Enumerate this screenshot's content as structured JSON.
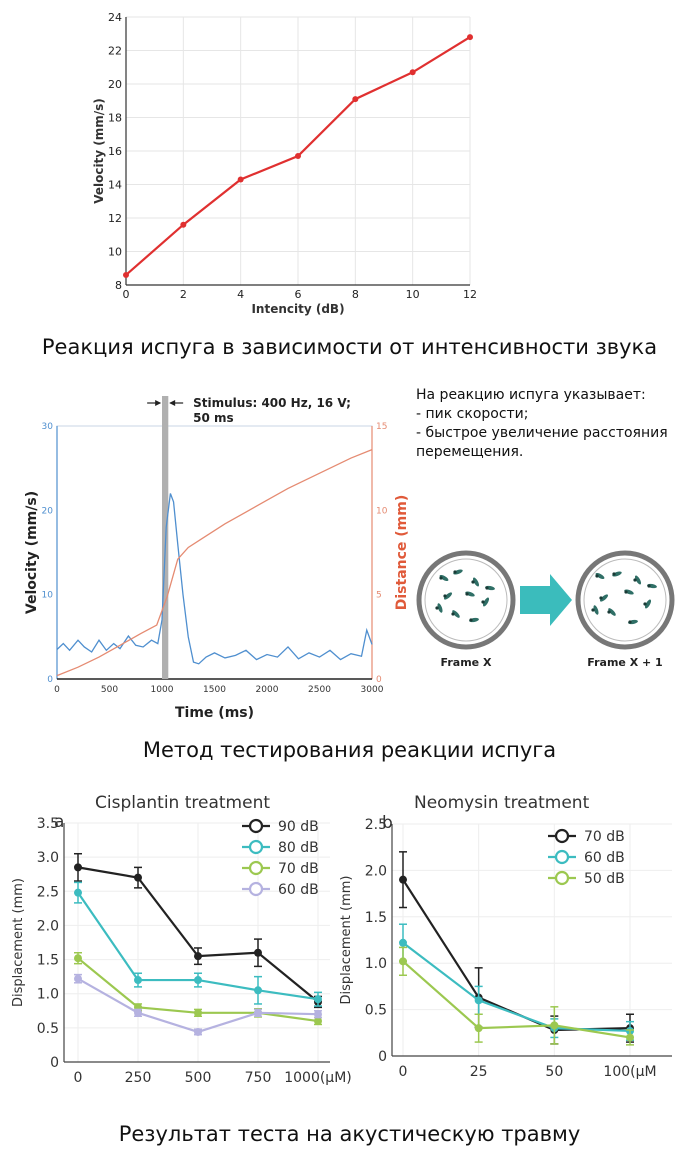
{
  "captions": {
    "chart1": "Реакция испуга в зависимости от интенсивности звука",
    "chart2": "Метод тестирования реакции испуга",
    "chart3": "Результат теста на акустическую травму"
  },
  "note": {
    "title": "На реакцию испуга указывает:",
    "items": [
      "- пик скорости;",
      "- быстрое увеличение расстояния",
      "перемещения."
    ]
  },
  "frames": {
    "left_label": "Frame X",
    "right_label": "Frame X + 1",
    "arrow_color": "#3bbcbc"
  },
  "chart_data": [
    {
      "type": "line",
      "id": "velocity-vs-intensity",
      "xlabel": "Intencity (dB)",
      "ylabel": "Velocity (mm/s)",
      "xlim": [
        0,
        12
      ],
      "ylim": [
        8,
        24
      ],
      "xticks": [
        0,
        2,
        4,
        6,
        8,
        10,
        12
      ],
      "yticks": [
        8,
        10,
        12,
        14,
        16,
        18,
        20,
        22,
        24
      ],
      "color": "#e03030",
      "x": [
        0,
        2,
        4,
        6,
        8,
        10,
        12
      ],
      "y": [
        8.6,
        11.6,
        14.3,
        15.7,
        19.1,
        20.7,
        22.8
      ]
    },
    {
      "type": "line",
      "id": "startle-test",
      "annotation": "Stimulus: 400 Hz, 16 V;",
      "annotation2": "50 ms",
      "xlabel": "Time (ms)",
      "ylabel_left": "Velocity (mm/s)",
      "ylabel_right": "Distance (mm)",
      "xlim": [
        0,
        3000
      ],
      "xticks": [
        0,
        500,
        1000,
        1500,
        2000,
        2500,
        3000
      ],
      "ylim_left": [
        0,
        30
      ],
      "yticks_left": [
        0,
        10,
        20,
        30
      ],
      "ylim_right": [
        0,
        15
      ],
      "yticks_right": [
        0,
        5,
        10,
        15
      ],
      "stimulus_ms": [
        1000,
        1060
      ],
      "series": [
        {
          "name": "Velocity",
          "axis": "left",
          "color": "#4f8fcf",
          "x": [
            0,
            60,
            120,
            200,
            260,
            330,
            400,
            470,
            540,
            600,
            680,
            750,
            820,
            900,
            960,
            1000,
            1040,
            1080,
            1110,
            1150,
            1200,
            1250,
            1300,
            1350,
            1420,
            1500,
            1600,
            1700,
            1800,
            1900,
            2000,
            2100,
            2200,
            2300,
            2400,
            2500,
            2600,
            2700,
            2800,
            2900,
            2950,
            3000
          ],
          "y": [
            3.5,
            4.2,
            3.4,
            4.6,
            3.8,
            3.2,
            4.6,
            3.4,
            4.2,
            3.6,
            5.1,
            4.0,
            3.8,
            4.6,
            4.2,
            7,
            18,
            22,
            21,
            16,
            10,
            5,
            2,
            1.8,
            2.6,
            3.1,
            2.5,
            2.8,
            3.4,
            2.3,
            2.9,
            2.6,
            3.8,
            2.4,
            3.1,
            2.6,
            3.4,
            2.3,
            3.0,
            2.7,
            5.8,
            4.1
          ]
        },
        {
          "name": "Distance",
          "axis": "right",
          "color": "#e58b72",
          "x": [
            0,
            200,
            400,
            600,
            800,
            950,
            1050,
            1150,
            1250,
            1400,
            1600,
            1800,
            2000,
            2200,
            2400,
            2600,
            2800,
            3000
          ],
          "y": [
            0.2,
            0.7,
            1.3,
            2.0,
            2.7,
            3.2,
            4.9,
            7.1,
            7.8,
            8.4,
            9.2,
            9.9,
            10.6,
            11.3,
            11.9,
            12.5,
            13.1,
            13.6
          ]
        }
      ]
    },
    {
      "type": "line",
      "id": "cisplatin",
      "panel": "a",
      "title": "Cisplantin treatment",
      "xlabel": "",
      "ylabel": "Displacement (mm)",
      "categories": [
        "0",
        "250",
        "500",
        "750",
        "1000(μM)"
      ],
      "ylim": [
        0,
        3.5
      ],
      "yticks": [
        "0",
        "0.5",
        "1.0",
        "1.5",
        "2.0",
        "2.5",
        "3.0",
        "3.5"
      ],
      "legend_position": "top-right",
      "series": [
        {
          "name": "90 dB",
          "color": "#222222",
          "values": [
            2.85,
            2.7,
            1.55,
            1.6,
            0.88
          ],
          "err": [
            0.2,
            0.15,
            0.12,
            0.2,
            0.08
          ]
        },
        {
          "name": "80 dB",
          "color": "#3cbcc0",
          "values": [
            2.48,
            1.2,
            1.2,
            1.05,
            0.92
          ],
          "err": [
            0.15,
            0.1,
            0.1,
            0.2,
            0.1
          ]
        },
        {
          "name": "70 dB",
          "color": "#9cc850",
          "values": [
            1.52,
            0.8,
            0.72,
            0.72,
            0.6
          ],
          "err": [
            0.08,
            0.05,
            0.05,
            0.06,
            0.05
          ]
        },
        {
          "name": "60 dB",
          "color": "#b5b2e0",
          "values": [
            1.22,
            0.72,
            0.44,
            0.72,
            0.7
          ],
          "err": [
            0.06,
            0.05,
            0.04,
            0.05,
            0.05
          ]
        }
      ]
    },
    {
      "type": "line",
      "id": "neomycin",
      "panel": "b",
      "title": "Neomysin treatment",
      "xlabel": "",
      "ylabel": "Displacement (mm)",
      "categories": [
        "0",
        "25",
        "50",
        "100(μM"
      ],
      "ylim": [
        0,
        2.5
      ],
      "yticks": [
        "0",
        "0.5",
        "1.0",
        "1.5",
        "2.0",
        "2.5"
      ],
      "legend_position": "top-right",
      "series": [
        {
          "name": "70 dB",
          "color": "#222222",
          "values": [
            1.9,
            0.63,
            0.28,
            0.3
          ],
          "err": [
            0.3,
            0.32,
            0.15,
            0.15
          ]
        },
        {
          "name": "60 dB",
          "color": "#3cbcc0",
          "values": [
            1.22,
            0.6,
            0.3,
            0.27
          ],
          "err": [
            0.2,
            0.15,
            0.1,
            0.1
          ]
        },
        {
          "name": "50 dB",
          "color": "#9cc850",
          "values": [
            1.02,
            0.3,
            0.33,
            0.2
          ],
          "err": [
            0.15,
            0.15,
            0.2,
            0.08
          ]
        }
      ]
    }
  ]
}
